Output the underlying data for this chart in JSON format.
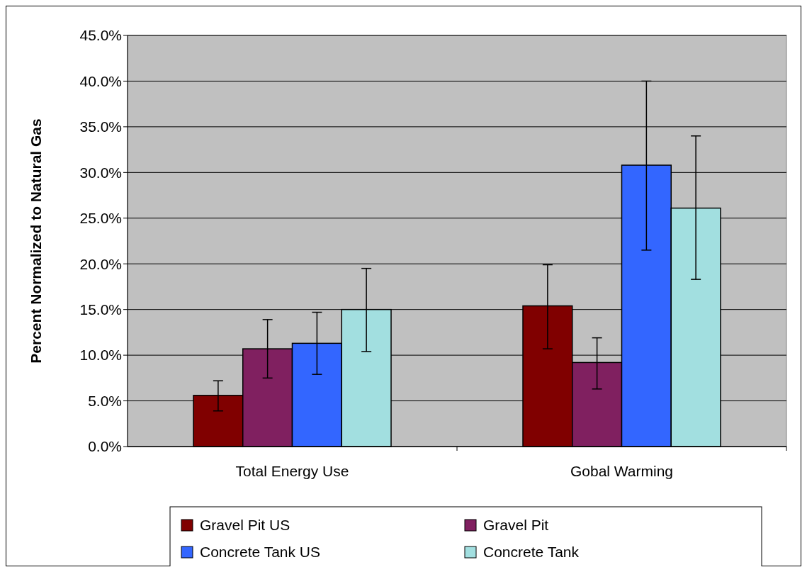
{
  "chart_data": {
    "type": "bar",
    "ylabel": "Percent Normalized to Natural Gas",
    "categories": [
      "Total Energy Use",
      "Gobal Warming"
    ],
    "series": [
      {
        "name": "Gravel Pit US",
        "color": "#800000",
        "values": [
          5.6,
          15.4
        ],
        "errors": [
          [
            3.9,
            7.2
          ],
          [
            10.7,
            19.9
          ]
        ]
      },
      {
        "name": "Gravel Pit",
        "color": "#802060",
        "values": [
          10.7,
          9.2
        ],
        "errors": [
          [
            7.5,
            13.9
          ],
          [
            6.3,
            11.9
          ]
        ]
      },
      {
        "name": "Concrete Tank US",
        "color": "#3366ff",
        "values": [
          11.3,
          30.8
        ],
        "errors": [
          [
            7.9,
            14.7
          ],
          [
            21.5,
            40.0
          ]
        ]
      },
      {
        "name": "Concrete Tank",
        "color": "#a2dfe0",
        "values": [
          15.0,
          26.1
        ],
        "errors": [
          [
            10.4,
            19.5
          ],
          [
            18.3,
            34.0
          ]
        ]
      }
    ],
    "ylim": [
      0,
      45
    ],
    "yticks": [
      {
        "value": 0,
        "label": "0.0%"
      },
      {
        "value": 5,
        "label": "5.0%"
      },
      {
        "value": 10,
        "label": "10.0%"
      },
      {
        "value": 15,
        "label": "15.0%"
      },
      {
        "value": 20,
        "label": "20.0%"
      },
      {
        "value": 25,
        "label": "25.0%"
      },
      {
        "value": 30,
        "label": "30.0%"
      },
      {
        "value": 35,
        "label": "35.0%"
      },
      {
        "value": 40,
        "label": "40.0%"
      },
      {
        "value": 45,
        "label": "45.0%"
      }
    ],
    "grid": "y",
    "legend": "bottom"
  }
}
